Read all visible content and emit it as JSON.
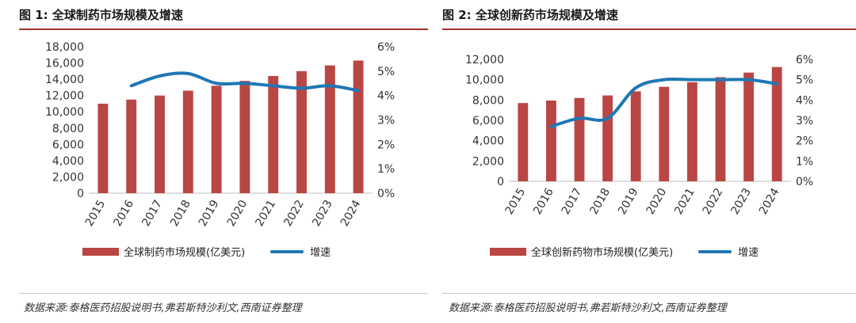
{
  "figures": [
    {
      "title": "图 1: 全球制药市场规模及增速",
      "source": "数据来源:泰格医药招股说明书,弗若斯特沙利文,西南证券整理",
      "legend": {
        "bar": "全球制药市场规模(亿美元)",
        "line": "增速"
      }
    },
    {
      "title": "图 2: 全球创新药市场规模及增速",
      "source": "数据来源:泰格医药招股说明书,弗若斯特沙利文,西南证券整理",
      "legend": {
        "bar": "全球创新药物市场规模(亿美元)",
        "line": "增速"
      }
    }
  ],
  "colors": {
    "bar": "#b94643",
    "line": "#1f77b4",
    "title_rule": "#a5322d"
  },
  "chart_data": [
    {
      "type": "bar",
      "categories": [
        "2015",
        "2016",
        "2017",
        "2018",
        "2019",
        "2020",
        "2021",
        "2022",
        "2023",
        "2024"
      ],
      "series": [
        {
          "name": "全球制药市场规模(亿美元)",
          "type": "bar",
          "axis": "left",
          "values": [
            11000,
            11500,
            12000,
            12600,
            13200,
            13800,
            14400,
            15000,
            15700,
            16300
          ]
        },
        {
          "name": "增速",
          "type": "line",
          "axis": "right",
          "values": [
            null,
            0.044,
            0.048,
            0.049,
            0.045,
            0.045,
            0.044,
            0.043,
            0.044,
            0.042
          ]
        }
      ],
      "y_left": {
        "min": 0,
        "max": 18000,
        "step": 2000,
        "ticks": [
          "0",
          "2,000",
          "4,000",
          "6,000",
          "8,000",
          "10,000",
          "12,000",
          "14,000",
          "16,000",
          "18,000"
        ]
      },
      "y_right": {
        "min": 0,
        "max": 0.06,
        "step": 0.01,
        "ticks": [
          "0%",
          "1%",
          "2%",
          "3%",
          "4%",
          "5%",
          "6%"
        ]
      },
      "grid": false,
      "legend_position": "bottom"
    },
    {
      "type": "bar",
      "categories": [
        "2015",
        "2016",
        "2017",
        "2018",
        "2019",
        "2020",
        "2021",
        "2022",
        "2023",
        "2024"
      ],
      "series": [
        {
          "name": "全球创新药物市场规模(亿美元)",
          "type": "bar",
          "axis": "left",
          "values": [
            7700,
            7950,
            8200,
            8450,
            8850,
            9300,
            9750,
            10250,
            10700,
            11250
          ]
        },
        {
          "name": "增速",
          "type": "line",
          "axis": "right",
          "values": [
            null,
            0.027,
            0.031,
            0.031,
            0.046,
            0.05,
            0.05,
            0.05,
            0.05,
            0.048
          ]
        }
      ],
      "y_left": {
        "min": 0,
        "max": 12000,
        "step": 2000,
        "ticks": [
          "0",
          "2,000",
          "4,000",
          "6,000",
          "8,000",
          "10,000",
          "12,000"
        ]
      },
      "y_right": {
        "min": 0,
        "max": 0.06,
        "step": 0.01,
        "ticks": [
          "0%",
          "1%",
          "2%",
          "3%",
          "4%",
          "5%",
          "6%"
        ]
      },
      "grid": false,
      "legend_position": "bottom"
    }
  ]
}
